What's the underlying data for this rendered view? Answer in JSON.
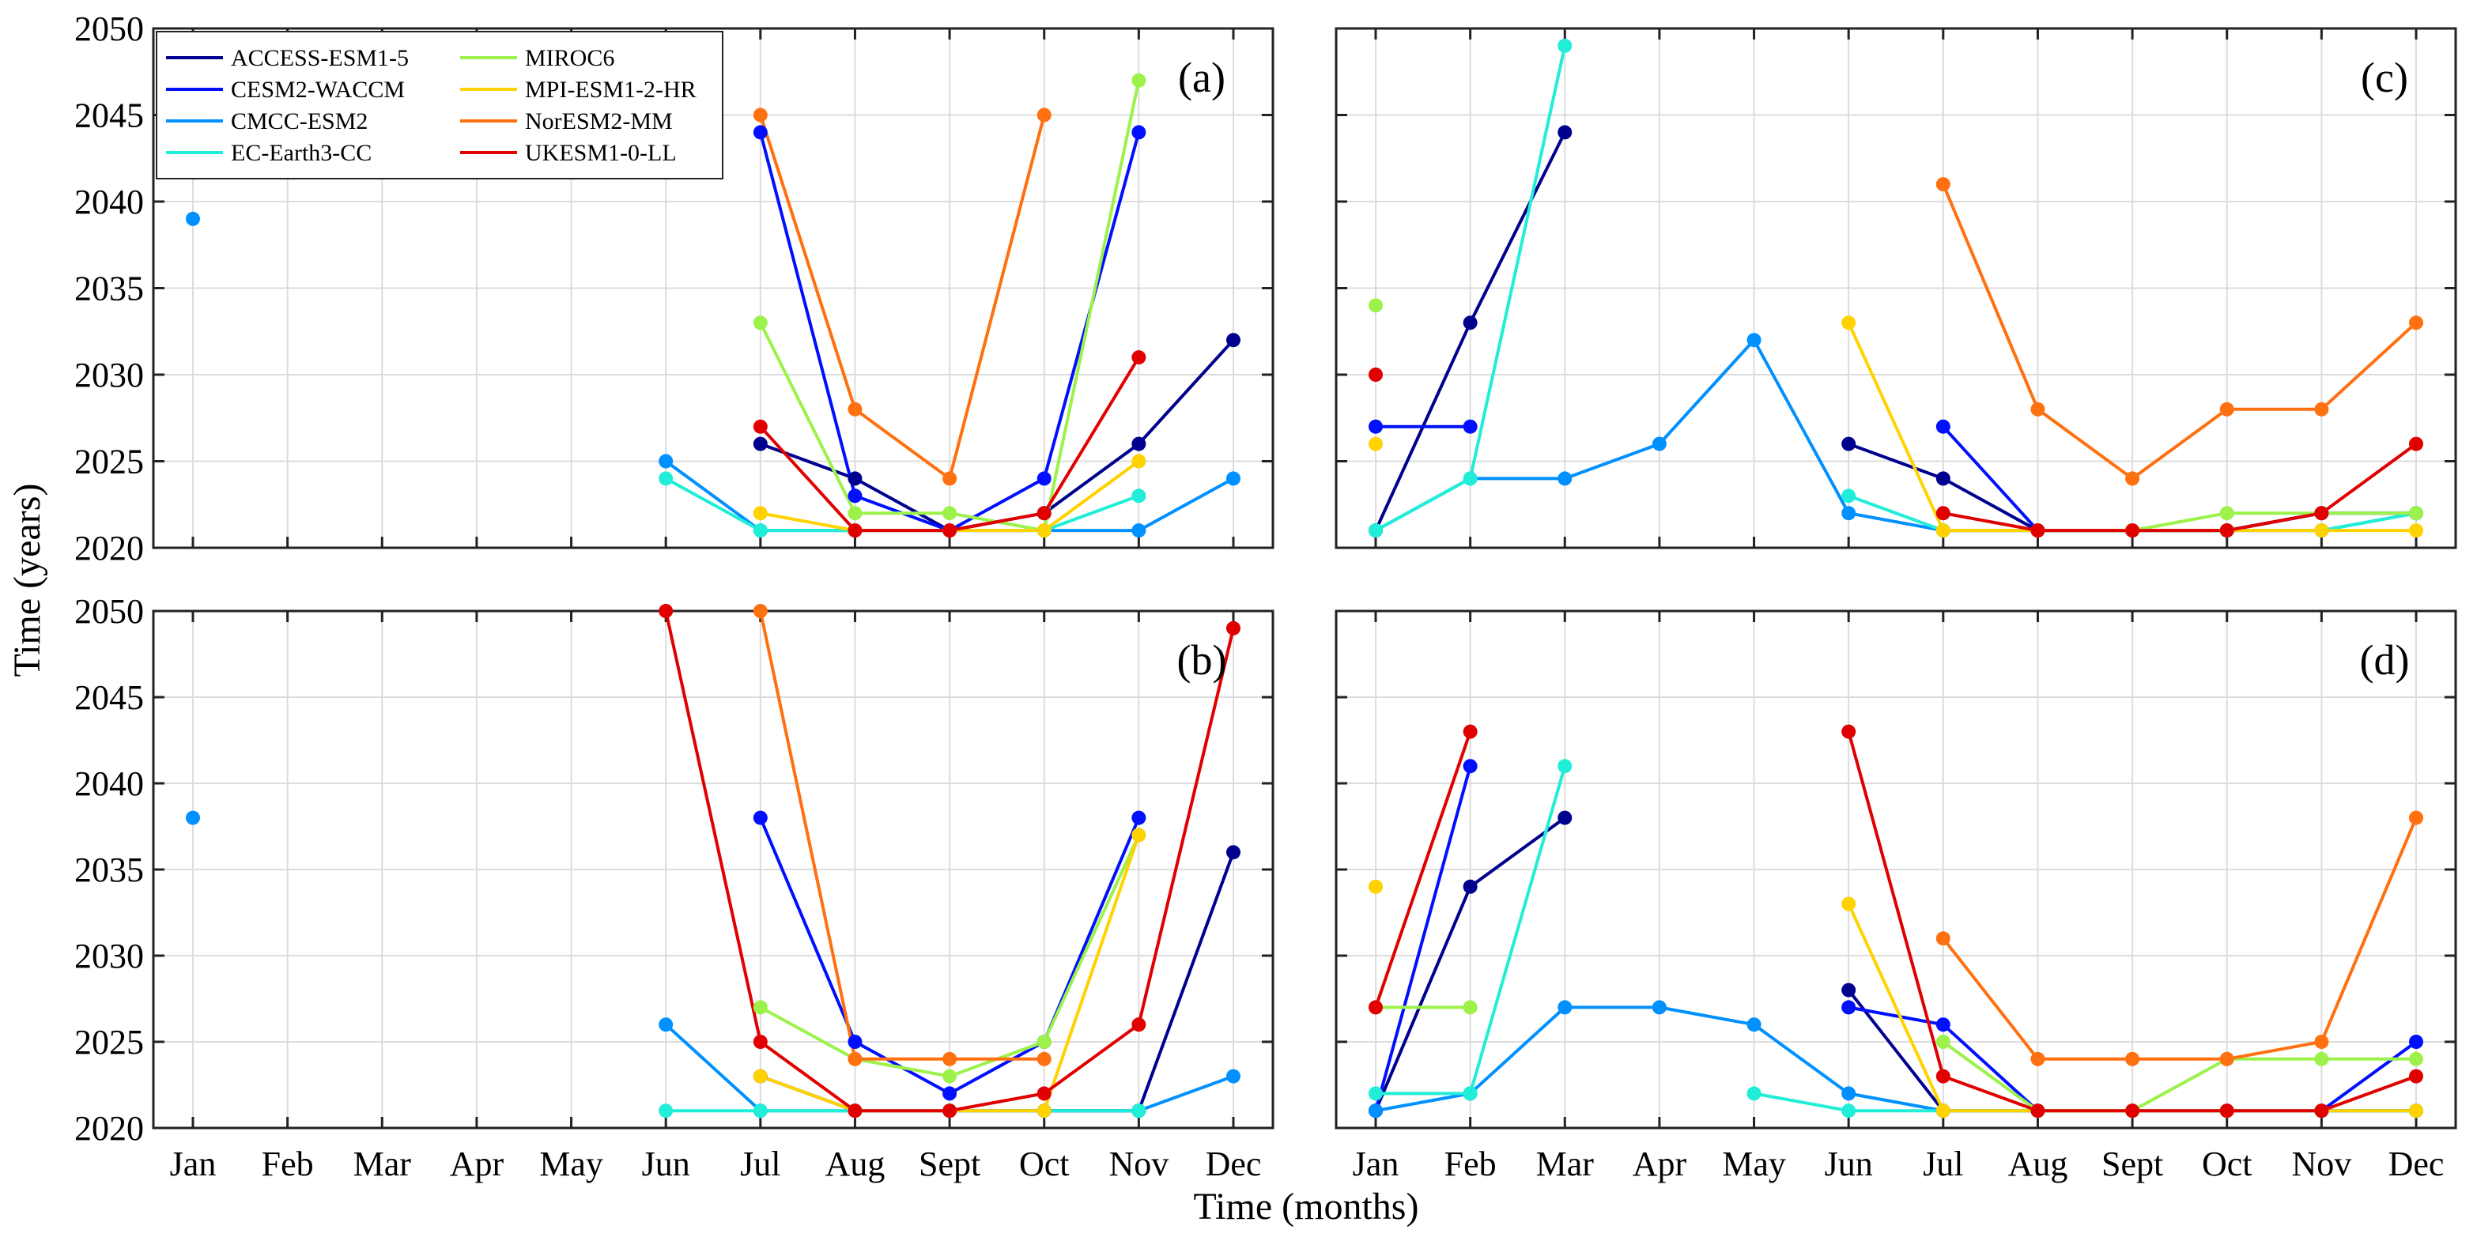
{
  "chart_data": {
    "type": "line",
    "xlabel": "Time (months)",
    "ylabel": "Time (years)",
    "x": [
      "Jan",
      "Feb",
      "Mar",
      "Apr",
      "May",
      "Jun",
      "Jul",
      "Aug",
      "Sept",
      "Oct",
      "Nov",
      "Dec"
    ],
    "ylim": [
      2020,
      2050
    ],
    "yticks": [
      2020,
      2025,
      2030,
      2035,
      2040,
      2045,
      2050
    ],
    "grid": true,
    "legend_position": "top-left of panel (a)",
    "models": [
      {
        "name": "ACCESS-ESM1-5",
        "color": "#00008f"
      },
      {
        "name": "CESM2-WACCM",
        "color": "#0010ff"
      },
      {
        "name": "CMCC-ESM2",
        "color": "#0090ff"
      },
      {
        "name": "EC-Earth3-CC",
        "color": "#20eed8"
      },
      {
        "name": "MIROC6",
        "color": "#9cf24a"
      },
      {
        "name": "MPI-ESM1-2-HR",
        "color": "#ffd200"
      },
      {
        "name": "NorESM2-MM",
        "color": "#ff7010"
      },
      {
        "name": "UKESM1-0-LL",
        "color": "#e00000"
      }
    ],
    "panels": [
      {
        "label": "(a)",
        "series": [
          {
            "name": "ACCESS-ESM1-5",
            "values": [
              null,
              null,
              null,
              null,
              null,
              null,
              2026,
              2024,
              2021,
              2022,
              2026,
              2032
            ]
          },
          {
            "name": "CESM2-WACCM",
            "values": [
              null,
              null,
              null,
              null,
              null,
              null,
              2044,
              2023,
              2021,
              2024,
              2044,
              null
            ]
          },
          {
            "name": "CMCC-ESM2",
            "values": [
              2039,
              null,
              null,
              null,
              null,
              2025,
              2021,
              2021,
              2021,
              2021,
              2021,
              2024
            ]
          },
          {
            "name": "EC-Earth3-CC",
            "values": [
              null,
              null,
              null,
              null,
              null,
              2024,
              2021,
              2021,
              2021,
              2021,
              2023,
              null
            ]
          },
          {
            "name": "MIROC6",
            "values": [
              null,
              null,
              null,
              null,
              null,
              null,
              2033,
              2022,
              2022,
              2021,
              2047,
              null
            ]
          },
          {
            "name": "MPI-ESM1-2-HR",
            "values": [
              null,
              null,
              null,
              null,
              null,
              null,
              2022,
              2021,
              2021,
              2021,
              2025,
              null
            ]
          },
          {
            "name": "NorESM2-MM",
            "values": [
              null,
              null,
              null,
              null,
              null,
              null,
              2045,
              2028,
              2024,
              2045,
              null,
              null
            ]
          },
          {
            "name": "UKESM1-0-LL",
            "values": [
              null,
              null,
              null,
              null,
              null,
              null,
              2027,
              2021,
              2021,
              2022,
              2031,
              null
            ]
          }
        ]
      },
      {
        "label": "(b)",
        "series": [
          {
            "name": "ACCESS-ESM1-5",
            "values": [
              null,
              null,
              null,
              null,
              null,
              null,
              2023,
              2021,
              2021,
              2021,
              2021,
              2036
            ]
          },
          {
            "name": "CESM2-WACCM",
            "values": [
              null,
              null,
              null,
              null,
              null,
              null,
              2038,
              2025,
              2022,
              2025,
              2038,
              null
            ]
          },
          {
            "name": "CMCC-ESM2",
            "values": [
              2038,
              null,
              null,
              null,
              null,
              2026,
              2021,
              2021,
              2021,
              2021,
              2021,
              2023
            ]
          },
          {
            "name": "EC-Earth3-CC",
            "values": [
              null,
              null,
              null,
              null,
              null,
              2021,
              2021,
              2021,
              2021,
              2021,
              2021,
              null
            ]
          },
          {
            "name": "MIROC6",
            "values": [
              null,
              null,
              null,
              null,
              null,
              null,
              2027,
              2024,
              2023,
              2025,
              2037,
              null
            ]
          },
          {
            "name": "MPI-ESM1-2-HR",
            "values": [
              null,
              null,
              null,
              null,
              null,
              null,
              2023,
              2021,
              2021,
              2021,
              2037,
              null
            ]
          },
          {
            "name": "NorESM2-MM",
            "values": [
              null,
              null,
              null,
              null,
              null,
              null,
              2050,
              2024,
              2024,
              2024,
              null,
              null
            ]
          },
          {
            "name": "UKESM1-0-LL",
            "values": [
              null,
              null,
              null,
              null,
              null,
              2050,
              2025,
              2021,
              2021,
              2022,
              2026,
              2049
            ]
          }
        ]
      },
      {
        "label": "(c)",
        "series": [
          {
            "name": "ACCESS-ESM1-5",
            "values": [
              2021,
              2033,
              2044,
              null,
              null,
              2026,
              2024,
              2021,
              2021,
              2021,
              2022,
              2022
            ]
          },
          {
            "name": "CESM2-WACCM",
            "values": [
              2027,
              2027,
              null,
              null,
              null,
              null,
              2027,
              2021,
              2021,
              2021,
              2022,
              null
            ]
          },
          {
            "name": "CMCC-ESM2",
            "values": [
              2021,
              2024,
              2024,
              2026,
              2032,
              2022,
              2021,
              2021,
              2021,
              2021,
              2021,
              2022
            ]
          },
          {
            "name": "EC-Earth3-CC",
            "values": [
              2021,
              2024,
              2049,
              null,
              null,
              2023,
              2021,
              2021,
              2021,
              2021,
              2021,
              2022
            ]
          },
          {
            "name": "MIROC6",
            "values": [
              2034,
              null,
              null,
              null,
              null,
              null,
              2021,
              2021,
              2021,
              2022,
              2022,
              2022
            ]
          },
          {
            "name": "MPI-ESM1-2-HR",
            "values": [
              2026,
              null,
              null,
              null,
              null,
              2033,
              2021,
              2021,
              2021,
              2021,
              2021,
              2021
            ]
          },
          {
            "name": "NorESM2-MM",
            "values": [
              null,
              null,
              null,
              null,
              null,
              null,
              2041,
              2028,
              2024,
              2028,
              2028,
              2033
            ]
          },
          {
            "name": "UKESM1-0-LL",
            "values": [
              2030,
              null,
              null,
              null,
              null,
              null,
              2022,
              2021,
              2021,
              2021,
              2022,
              2026
            ]
          }
        ]
      },
      {
        "label": "(d)",
        "series": [
          {
            "name": "ACCESS-ESM1-5",
            "values": [
              2021,
              2034,
              2038,
              null,
              null,
              2028,
              2021,
              2021,
              2021,
              2021,
              2021,
              2021
            ]
          },
          {
            "name": "CESM2-WACCM",
            "values": [
              2021,
              2041,
              null,
              null,
              null,
              2027,
              2026,
              2021,
              2021,
              2021,
              2021,
              2025
            ]
          },
          {
            "name": "CMCC-ESM2",
            "values": [
              2021,
              2022,
              2027,
              2027,
              2026,
              2022,
              2021,
              2021,
              2021,
              2021,
              2021,
              2021
            ]
          },
          {
            "name": "EC-Earth3-CC",
            "values": [
              2022,
              2022,
              2041,
              null,
              2022,
              2021,
              2021,
              2021,
              2021,
              2021,
              2021,
              2021
            ]
          },
          {
            "name": "MIROC6",
            "values": [
              2027,
              2027,
              null,
              null,
              null,
              null,
              2025,
              2021,
              2021,
              2024,
              2024,
              2024
            ]
          },
          {
            "name": "MPI-ESM1-2-HR",
            "values": [
              2034,
              null,
              null,
              null,
              null,
              2033,
              2021,
              2021,
              2021,
              2021,
              2021,
              2021
            ]
          },
          {
            "name": "NorESM2-MM",
            "values": [
              null,
              null,
              null,
              null,
              null,
              null,
              2031,
              2024,
              2024,
              2024,
              2025,
              2038
            ]
          },
          {
            "name": "UKESM1-0-LL",
            "values": [
              2027,
              2043,
              null,
              null,
              null,
              2043,
              2023,
              2021,
              2021,
              2021,
              2021,
              2023
            ]
          }
        ]
      }
    ]
  }
}
